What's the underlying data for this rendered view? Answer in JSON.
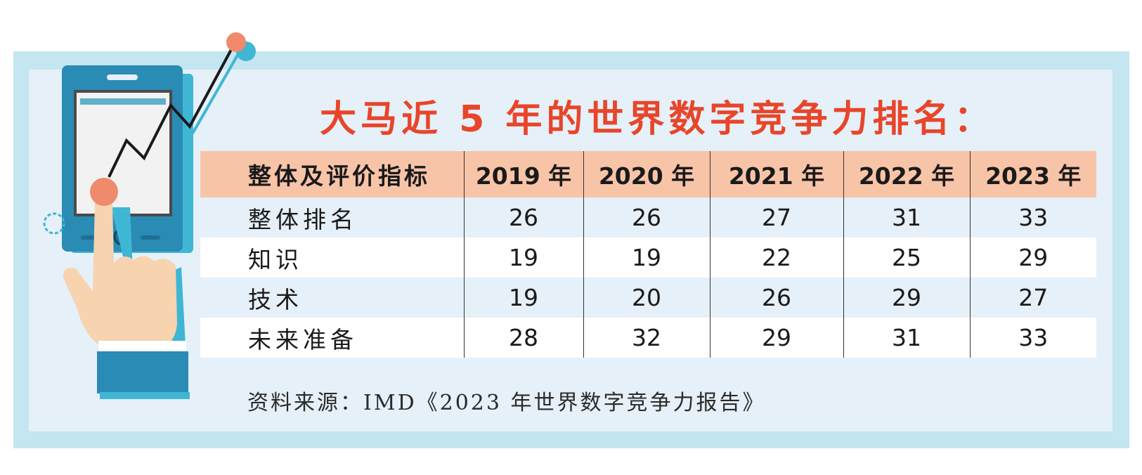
{
  "title": "大马近 5 年的世界数字竞争力排名：",
  "table": {
    "headers": [
      "整体及评价指标",
      "2019 年",
      "2020 年",
      "2021 年",
      "2022 年",
      "2023 年"
    ],
    "rows": [
      {
        "label": "整体排名",
        "values": [
          "26",
          "26",
          "27",
          "31",
          "33"
        ]
      },
      {
        "label": "知识",
        "values": [
          "19",
          "19",
          "22",
          "25",
          "29"
        ]
      },
      {
        "label": "技术",
        "values": [
          "19",
          "20",
          "26",
          "29",
          "27"
        ]
      },
      {
        "label": "未来准备",
        "values": [
          "28",
          "32",
          "29",
          "31",
          "33"
        ]
      }
    ]
  },
  "source": "资料来源：IMD《2023 年世界数字竞争力报告》",
  "colors": {
    "title": "#e8452a",
    "header_bg": "#f8c4a8",
    "frame_outer": "#c4e6f0",
    "frame_inner": "#e6f0f8",
    "phone": "#2a8bb5"
  },
  "chart_data": {
    "type": "table",
    "title": "大马近 5 年的世界数字竞争力排名：",
    "columns": [
      "整体及评价指标",
      "2019 年",
      "2020 年",
      "2021 年",
      "2022 年",
      "2023 年"
    ],
    "rows": [
      [
        "整体排名",
        26,
        26,
        27,
        31,
        33
      ],
      [
        "知识",
        19,
        19,
        22,
        25,
        29
      ],
      [
        "技术",
        19,
        20,
        26,
        29,
        27
      ],
      [
        "未来准备",
        28,
        32,
        29,
        31,
        33
      ]
    ]
  }
}
